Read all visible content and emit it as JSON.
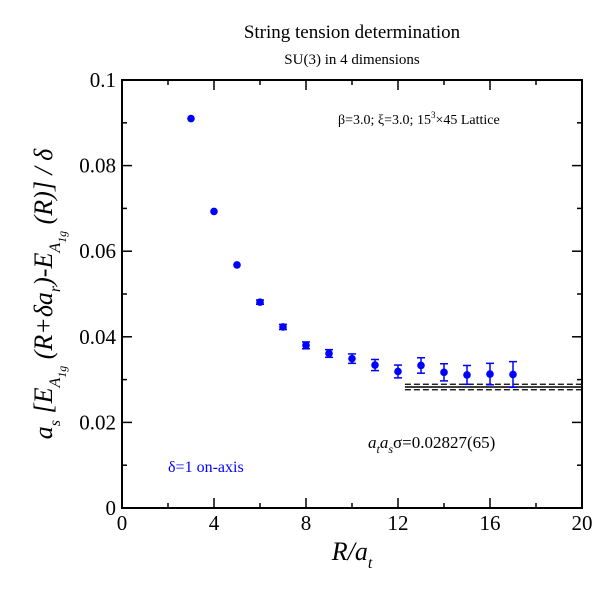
{
  "chart_data": {
    "type": "scatter",
    "title": "String tension determination",
    "subtitle": "SU(3) in 4 dimensions",
    "xlabel": "R/a_t",
    "ylabel": "a_s [E_{A1g}(R+δa_r) - E_{A1g}(R)] / δ",
    "xlim": [
      0,
      20
    ],
    "ylim": [
      0,
      0.1
    ],
    "xticks": [
      "0",
      "4",
      "8",
      "12",
      "16",
      "20"
    ],
    "yticks": [
      "0",
      "0.02",
      "0.04",
      "0.06",
      "0.08",
      "0.1"
    ],
    "grid": false,
    "colors": {
      "series": "#0000ff",
      "fit": "#000000"
    },
    "series": [
      {
        "name": "δ=1 on-axis",
        "x": [
          3,
          4,
          5,
          6,
          7,
          8,
          9,
          10,
          11,
          12,
          13,
          14,
          15,
          16,
          17
        ],
        "y": [
          0.091,
          0.0693,
          0.0568,
          0.0481,
          0.0423,
          0.038,
          0.0361,
          0.0349,
          0.0334,
          0.0319,
          0.0333,
          0.0317,
          0.0311,
          0.0313,
          0.0312
        ],
        "err": [
          0.0003,
          0.0003,
          0.0004,
          0.0005,
          0.0006,
          0.0008,
          0.0009,
          0.0011,
          0.0013,
          0.0015,
          0.0018,
          0.002,
          0.0022,
          0.0025,
          0.003
        ]
      }
    ],
    "fit": {
      "x_range": [
        12.3,
        20
      ],
      "value": 0.02827,
      "error": 0.00065,
      "label_prefix": "a",
      "label_sub1": "t",
      "label_mid": "a",
      "label_sub2": "s",
      "label_value": "σ=0.02827(65)"
    },
    "annotation": {
      "beta": "β=3.0;",
      "xi": "ξ=3.0;",
      "lattice_base": "15",
      "lattice_exp": "3",
      "lattice_rest": "×45 Lattice"
    },
    "legend": {
      "text": "δ=1 on-axis",
      "placement": "bottom-left"
    }
  }
}
